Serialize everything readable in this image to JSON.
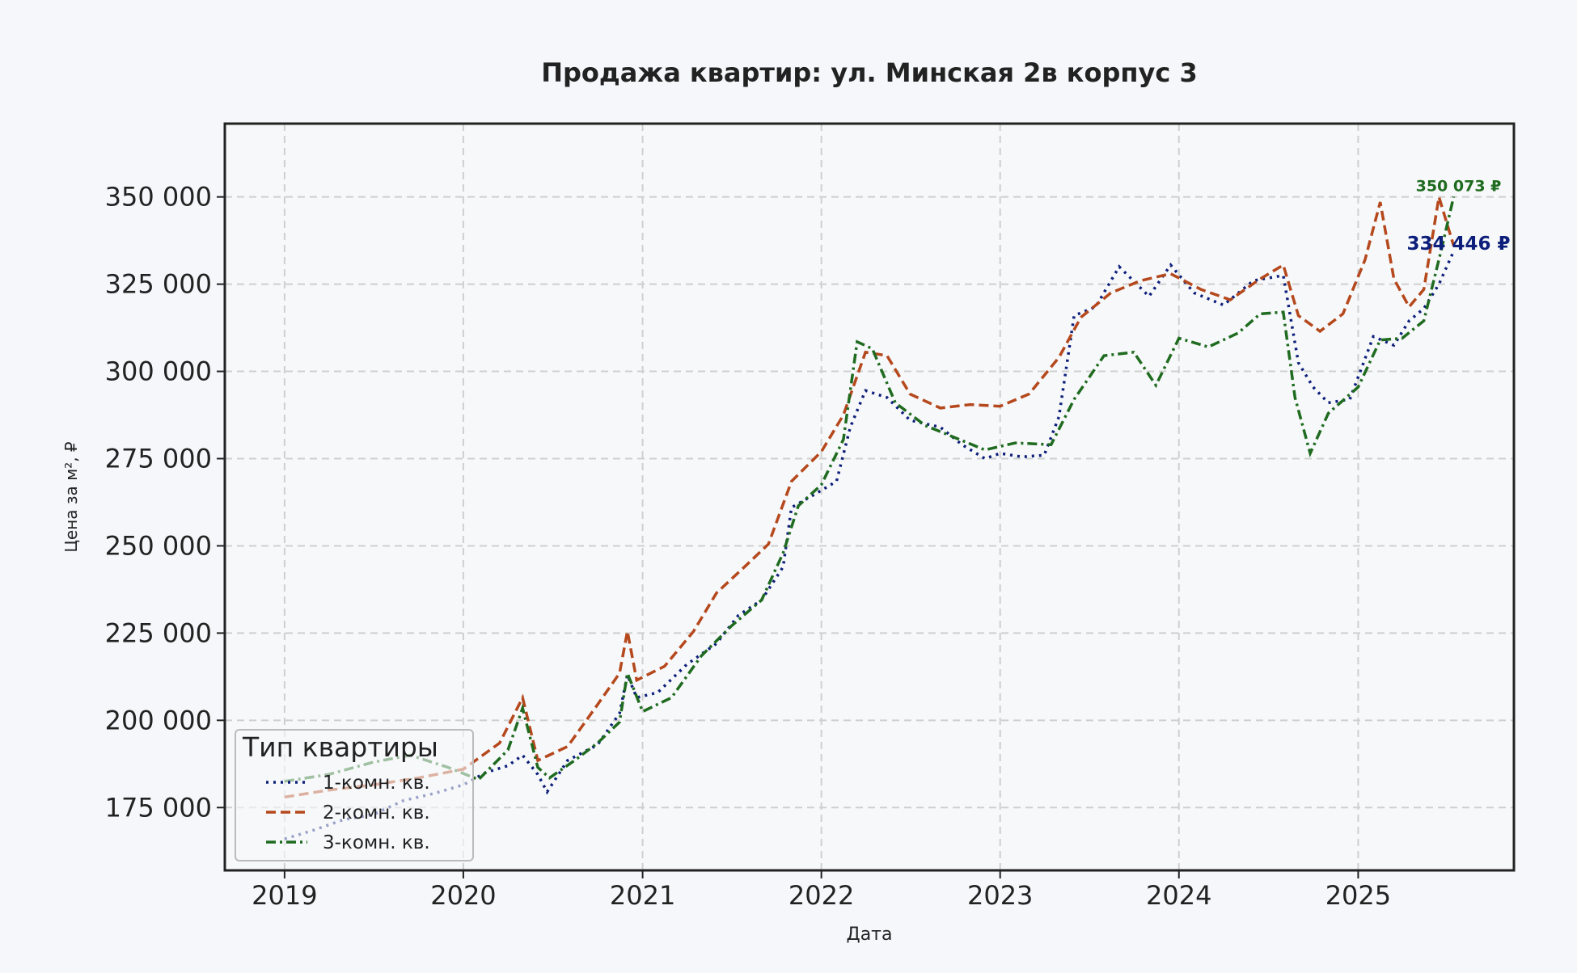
{
  "chart_data": {
    "type": "line",
    "title": "Продажа квартир: ул. Минская 2в корпус 3",
    "xlabel": "Дата",
    "ylabel": "Цена за м², ₽",
    "x_ticks": [
      "2019",
      "2020",
      "2021",
      "2022",
      "2023",
      "2024",
      "2025"
    ],
    "y_ticks": [
      "175 000",
      "200 000",
      "225 000",
      "250 000",
      "275 000",
      "300 000",
      "325 000",
      "350 000"
    ],
    "xlim": [
      "2018-09-01",
      "2025-11-15"
    ],
    "ylim": [
      157000,
      371000
    ],
    "grid": true,
    "legend": {
      "title": "Тип квартиры",
      "placement": "lower-left"
    },
    "series": [
      {
        "name": "1-комн. кв.",
        "color": "#0d1f7a",
        "style": "dotted",
        "points": [
          [
            "2019-01-01",
            166000
          ],
          [
            "2019-03-01",
            168500
          ],
          [
            "2019-05-01",
            171500
          ],
          [
            "2019-07-01",
            173000
          ],
          [
            "2019-09-01",
            177000
          ],
          [
            "2019-11-01",
            179000
          ],
          [
            "2020-01-01",
            181500
          ],
          [
            "2020-02-15",
            185000
          ],
          [
            "2020-04-01",
            187000
          ],
          [
            "2020-05-01",
            190000
          ],
          [
            "2020-06-01",
            184500
          ],
          [
            "2020-06-20",
            179500
          ],
          [
            "2020-08-01",
            188500
          ],
          [
            "2020-10-01",
            193000
          ],
          [
            "2020-11-15",
            202000
          ],
          [
            "2020-12-01",
            213000
          ],
          [
            "2020-12-20",
            206500
          ],
          [
            "2021-02-01",
            208000
          ],
          [
            "2021-04-01",
            216000
          ],
          [
            "2021-06-01",
            222000
          ],
          [
            "2021-07-15",
            230000
          ],
          [
            "2021-09-01",
            234500
          ],
          [
            "2021-10-15",
            244000
          ],
          [
            "2021-11-01",
            261000
          ],
          [
            "2021-12-15",
            264500
          ],
          [
            "2022-02-01",
            268500
          ],
          [
            "2022-03-01",
            284000
          ],
          [
            "2022-04-01",
            294500
          ],
          [
            "2022-05-15",
            292500
          ],
          [
            "2022-07-01",
            286000
          ],
          [
            "2022-09-01",
            284000
          ],
          [
            "2022-10-15",
            279000
          ],
          [
            "2022-12-01",
            275000
          ],
          [
            "2023-01-01",
            276500
          ],
          [
            "2023-02-15",
            275500
          ],
          [
            "2023-04-01",
            276000
          ],
          [
            "2023-05-01",
            287000
          ],
          [
            "2023-06-01",
            316000
          ],
          [
            "2023-07-15",
            318500
          ],
          [
            "2023-09-01",
            330000
          ],
          [
            "2023-11-01",
            321500
          ],
          [
            "2023-12-15",
            330500
          ],
          [
            "2024-02-01",
            322500
          ],
          [
            "2024-04-01",
            319000
          ],
          [
            "2024-06-01",
            326000
          ],
          [
            "2024-08-01",
            327500
          ],
          [
            "2024-09-01",
            302500
          ],
          [
            "2024-10-01",
            295500
          ],
          [
            "2024-11-01",
            291000
          ],
          [
            "2024-12-15",
            292000
          ],
          [
            "2025-02-01",
            310000
          ],
          [
            "2025-03-15",
            307500
          ],
          [
            "2025-04-15",
            314500
          ],
          [
            "2025-05-15",
            318000
          ],
          [
            "2025-06-15",
            325000
          ],
          [
            "2025-07-15",
            334446
          ]
        ]
      },
      {
        "name": "2-комн. кв.",
        "color": "#b5481c",
        "style": "dashed",
        "points": [
          [
            "2019-01-01",
            178000
          ],
          [
            "2019-04-01",
            180000
          ],
          [
            "2019-07-01",
            181500
          ],
          [
            "2019-10-01",
            183500
          ],
          [
            "2020-01-01",
            186000
          ],
          [
            "2020-03-15",
            193500
          ],
          [
            "2020-05-01",
            206500
          ],
          [
            "2020-06-01",
            188500
          ],
          [
            "2020-08-01",
            192500
          ],
          [
            "2020-10-01",
            204500
          ],
          [
            "2020-11-15",
            213500
          ],
          [
            "2020-12-01",
            225500
          ],
          [
            "2020-12-20",
            211500
          ],
          [
            "2021-02-15",
            215500
          ],
          [
            "2021-04-15",
            225500
          ],
          [
            "2021-06-01",
            236500
          ],
          [
            "2021-08-01",
            244500
          ],
          [
            "2021-09-15",
            250500
          ],
          [
            "2021-11-01",
            268500
          ],
          [
            "2022-01-01",
            277000
          ],
          [
            "2022-02-15",
            287500
          ],
          [
            "2022-04-01",
            305500
          ],
          [
            "2022-05-15",
            304500
          ],
          [
            "2022-07-01",
            293500
          ],
          [
            "2022-09-01",
            289500
          ],
          [
            "2022-11-01",
            290500
          ],
          [
            "2023-01-01",
            290000
          ],
          [
            "2023-03-01",
            293500
          ],
          [
            "2023-05-01",
            304000
          ],
          [
            "2023-06-15",
            315500
          ],
          [
            "2023-08-15",
            322500
          ],
          [
            "2023-10-15",
            326000
          ],
          [
            "2023-12-15",
            328000
          ],
          [
            "2024-02-15",
            323500
          ],
          [
            "2024-04-15",
            320500
          ],
          [
            "2024-06-15",
            326500
          ],
          [
            "2024-08-01",
            330500
          ],
          [
            "2024-09-01",
            316000
          ],
          [
            "2024-10-15",
            311500
          ],
          [
            "2024-12-01",
            316500
          ],
          [
            "2025-01-15",
            332000
          ],
          [
            "2025-02-15",
            348500
          ],
          [
            "2025-03-15",
            326500
          ],
          [
            "2025-04-15",
            318500
          ],
          [
            "2025-05-15",
            323500
          ],
          [
            "2025-06-15",
            350000
          ],
          [
            "2025-07-15",
            336000
          ]
        ]
      },
      {
        "name": "3-комн. кв.",
        "color": "#1f6b1f",
        "style": "dashdot",
        "points": [
          [
            "2019-01-01",
            182500
          ],
          [
            "2019-04-01",
            184500
          ],
          [
            "2019-07-01",
            188000
          ],
          [
            "2019-09-15",
            190000
          ],
          [
            "2019-12-01",
            186500
          ],
          [
            "2020-02-01",
            183000
          ],
          [
            "2020-04-01",
            191500
          ],
          [
            "2020-05-01",
            203500
          ],
          [
            "2020-06-01",
            186500
          ],
          [
            "2020-06-25",
            183500
          ],
          [
            "2020-08-15",
            188500
          ],
          [
            "2020-10-01",
            193500
          ],
          [
            "2020-11-15",
            199500
          ],
          [
            "2020-12-01",
            213500
          ],
          [
            "2021-01-01",
            202500
          ],
          [
            "2021-03-01",
            206500
          ],
          [
            "2021-05-01",
            218500
          ],
          [
            "2021-07-01",
            227000
          ],
          [
            "2021-09-01",
            234500
          ],
          [
            "2021-10-15",
            248000
          ],
          [
            "2021-11-15",
            261500
          ],
          [
            "2022-01-01",
            267500
          ],
          [
            "2022-02-15",
            280500
          ],
          [
            "2022-03-15",
            308500
          ],
          [
            "2022-04-15",
            306500
          ],
          [
            "2022-06-01",
            291000
          ],
          [
            "2022-08-01",
            284500
          ],
          [
            "2022-10-01",
            281000
          ],
          [
            "2022-12-01",
            277500
          ],
          [
            "2023-02-01",
            279500
          ],
          [
            "2023-04-15",
            279000
          ],
          [
            "2023-06-01",
            292000
          ],
          [
            "2023-08-01",
            304500
          ],
          [
            "2023-10-01",
            305500
          ],
          [
            "2023-11-15",
            296000
          ],
          [
            "2024-01-01",
            309500
          ],
          [
            "2024-03-01",
            307000
          ],
          [
            "2024-05-01",
            311000
          ],
          [
            "2024-06-15",
            316500
          ],
          [
            "2024-08-01",
            317000
          ],
          [
            "2024-08-25",
            292500
          ],
          [
            "2024-09-25",
            276500
          ],
          [
            "2024-11-01",
            288000
          ],
          [
            "2025-01-01",
            295500
          ],
          [
            "2025-02-15",
            309000
          ],
          [
            "2025-04-01",
            309500
          ],
          [
            "2025-05-15",
            314500
          ],
          [
            "2025-06-20",
            335000
          ],
          [
            "2025-07-15",
            350073
          ]
        ]
      }
    ],
    "annotations": [
      {
        "text": "350 073 ₽",
        "series": "3-комн. кв."
      },
      {
        "text": "334 446 ₽",
        "series": "1-комн. кв."
      }
    ]
  }
}
